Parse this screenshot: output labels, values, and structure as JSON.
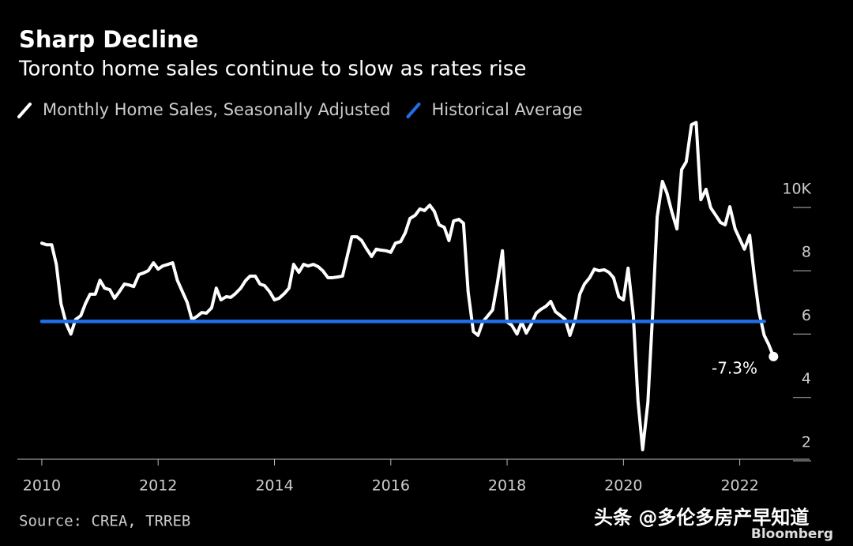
{
  "chart_data": {
    "type": "line",
    "title": "Sharp Decline",
    "subtitle": "Toronto home sales continue to slow as rates rise",
    "source": "Source: CREA, TRREB",
    "annotation": "-7.3%",
    "watermark": "头条 @多伦多房产早知道",
    "logo": "Bloomberg",
    "xlim": [
      2009.58,
      2023.2
    ],
    "xticks": [
      2010,
      2012,
      2014,
      2016,
      2018,
      2020,
      2022
    ],
    "ylim": [
      2,
      12.8
    ],
    "yticks": [
      2,
      4,
      6,
      8,
      {
        "value": 10,
        "label": "10K"
      }
    ],
    "series": [
      {
        "name": "Monthly Home Sales, Seasonally Adjusted",
        "color": "#ffffff",
        "x": [
          2010,
          2010.08,
          2010.17,
          2010.25,
          2010.33,
          2010.42,
          2010.5,
          2010.58,
          2010.67,
          2010.75,
          2010.83,
          2010.92,
          2011,
          2011.08,
          2011.17,
          2011.25,
          2011.33,
          2011.42,
          2011.5,
          2011.58,
          2011.67,
          2011.75,
          2011.83,
          2011.92,
          2012,
          2012.08,
          2012.17,
          2012.25,
          2012.33,
          2012.42,
          2012.5,
          2012.58,
          2012.67,
          2012.75,
          2012.83,
          2012.92,
          2013,
          2013.08,
          2013.17,
          2013.25,
          2013.33,
          2013.42,
          2013.5,
          2013.58,
          2013.67,
          2013.75,
          2013.83,
          2013.92,
          2014,
          2014.08,
          2014.17,
          2014.25,
          2014.33,
          2014.42,
          2014.5,
          2014.58,
          2014.67,
          2014.75,
          2014.83,
          2014.92,
          2015,
          2015.08,
          2015.17,
          2015.25,
          2015.33,
          2015.42,
          2015.5,
          2015.58,
          2015.67,
          2015.75,
          2015.83,
          2015.92,
          2016,
          2016.08,
          2016.17,
          2016.25,
          2016.33,
          2016.42,
          2016.5,
          2016.58,
          2016.67,
          2016.75,
          2016.83,
          2016.92,
          2017,
          2017.08,
          2017.17,
          2017.25,
          2017.33,
          2017.42,
          2017.5,
          2017.58,
          2017.67,
          2017.75,
          2017.83,
          2017.92,
          2018,
          2018.08,
          2018.17,
          2018.25,
          2018.33,
          2018.42,
          2018.5,
          2018.58,
          2018.67,
          2018.75,
          2018.83,
          2018.92,
          2019,
          2019.08,
          2019.17,
          2019.25,
          2019.33,
          2019.42,
          2019.5,
          2019.58,
          2019.67,
          2019.75,
          2019.83,
          2019.92,
          2020,
          2020.08,
          2020.17,
          2020.25,
          2020.33,
          2020.42,
          2020.5,
          2020.58,
          2020.67,
          2020.75,
          2020.83,
          2020.92,
          2021,
          2021.08,
          2021.17,
          2021.25,
          2021.33,
          2021.42,
          2021.5,
          2021.58,
          2021.67,
          2021.75,
          2021.83,
          2021.92,
          2022,
          2022.08,
          2022.17,
          2022.25,
          2022.33,
          2022.42,
          2022.5,
          2022.58
        ],
        "values": [
          8.87,
          8.82,
          8.82,
          8.2,
          6.96,
          6.33,
          6.0,
          6.46,
          6.58,
          6.96,
          7.26,
          7.26,
          7.7,
          7.45,
          7.4,
          7.13,
          7.33,
          7.58,
          7.55,
          7.5,
          7.88,
          7.93,
          8.0,
          8.25,
          8.05,
          8.15,
          8.2,
          8.25,
          7.7,
          7.33,
          7.0,
          6.46,
          6.56,
          6.68,
          6.66,
          6.83,
          7.45,
          7.08,
          7.18,
          7.16,
          7.28,
          7.45,
          7.68,
          7.83,
          7.83,
          7.58,
          7.53,
          7.33,
          7.08,
          7.13,
          7.28,
          7.45,
          8.2,
          7.95,
          8.2,
          8.15,
          8.2,
          8.13,
          8.0,
          7.78,
          7.78,
          7.8,
          7.83,
          8.45,
          9.07,
          9.07,
          8.95,
          8.7,
          8.45,
          8.68,
          8.65,
          8.63,
          8.58,
          8.87,
          8.92,
          9.2,
          9.65,
          9.75,
          9.95,
          9.9,
          10.07,
          9.87,
          9.45,
          9.37,
          8.95,
          9.57,
          9.62,
          9.5,
          7.33,
          6.08,
          5.96,
          6.38,
          6.58,
          6.76,
          7.58,
          8.63,
          6.38,
          6.28,
          6.0,
          6.38,
          6.03,
          6.33,
          6.66,
          6.78,
          6.88,
          7.03,
          6.71,
          6.58,
          6.46,
          5.96,
          6.46,
          7.26,
          7.58,
          7.78,
          8.05,
          8.0,
          8.03,
          7.95,
          7.78,
          7.18,
          7.08,
          8.08,
          6.58,
          3.89,
          2.35,
          3.84,
          6.58,
          9.7,
          10.82,
          10.44,
          9.87,
          9.32,
          11.19,
          11.44,
          12.61,
          12.68,
          10.24,
          10.57,
          9.99,
          9.77,
          9.52,
          9.45,
          10.02,
          9.32,
          9.0,
          8.68,
          9.12,
          7.83,
          6.71,
          5.96,
          5.66,
          5.29
        ]
      },
      {
        "name": "Historical Average",
        "color": "#1f6fe8",
        "x": [
          2010,
          2022.42
        ],
        "values": [
          6.4,
          6.4
        ]
      }
    ]
  }
}
